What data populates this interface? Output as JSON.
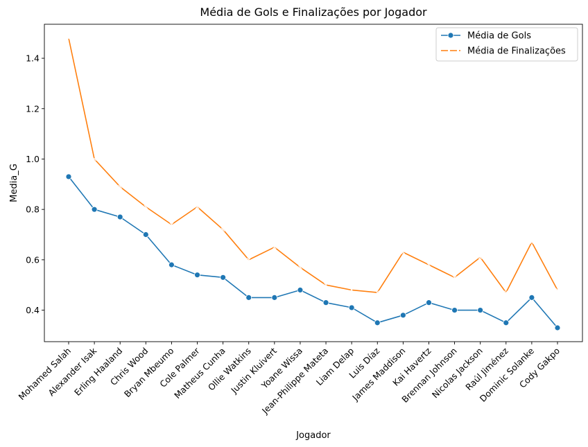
{
  "chart_data": {
    "type": "line",
    "title": "Média de Gols e Finalizações por Jogador",
    "xlabel": "Jogador",
    "ylabel": "Media_G",
    "categories": [
      "Mohamed Salah",
      "Alexander Isak",
      "Erling Haaland",
      "Chris Wood",
      "Bryan Mbeumo",
      "Cole Palmer",
      "Matheus Cunha",
      "Ollie Watkins",
      "Justin Kluivert",
      "Yoane Wissa",
      "Jean-Philippe Mateta",
      "Liam Delap",
      "Luis Díaz",
      "James Maddison",
      "Kai Havertz",
      "Brennan Johnson",
      "Nicolas Jackson",
      "Raúl Jiménez",
      "Dominic Solanke",
      "Cody Gakpo"
    ],
    "series": [
      {
        "name": "Média de Gols",
        "color": "#1f77b4",
        "marker": "circle",
        "values": [
          0.93,
          0.8,
          0.77,
          0.7,
          0.58,
          0.54,
          0.53,
          0.45,
          0.45,
          0.48,
          0.43,
          0.41,
          0.35,
          0.38,
          0.43,
          0.4,
          0.4,
          0.35,
          0.45,
          0.33
        ]
      },
      {
        "name": "Média de Finalizações",
        "color": "#ff7f0e",
        "marker": "x",
        "values": [
          1.48,
          1.0,
          0.89,
          0.81,
          0.74,
          0.81,
          0.72,
          0.6,
          0.65,
          0.57,
          0.5,
          0.48,
          0.47,
          0.63,
          0.58,
          0.53,
          0.61,
          0.47,
          0.67,
          0.48
        ]
      }
    ],
    "yticks": [
      "0.4",
      "0.6",
      "0.8",
      "1.0",
      "1.2",
      "1.4"
    ],
    "ylim": [
      0.275,
      1.535
    ],
    "legend_position": "upper right",
    "grid": false
  }
}
